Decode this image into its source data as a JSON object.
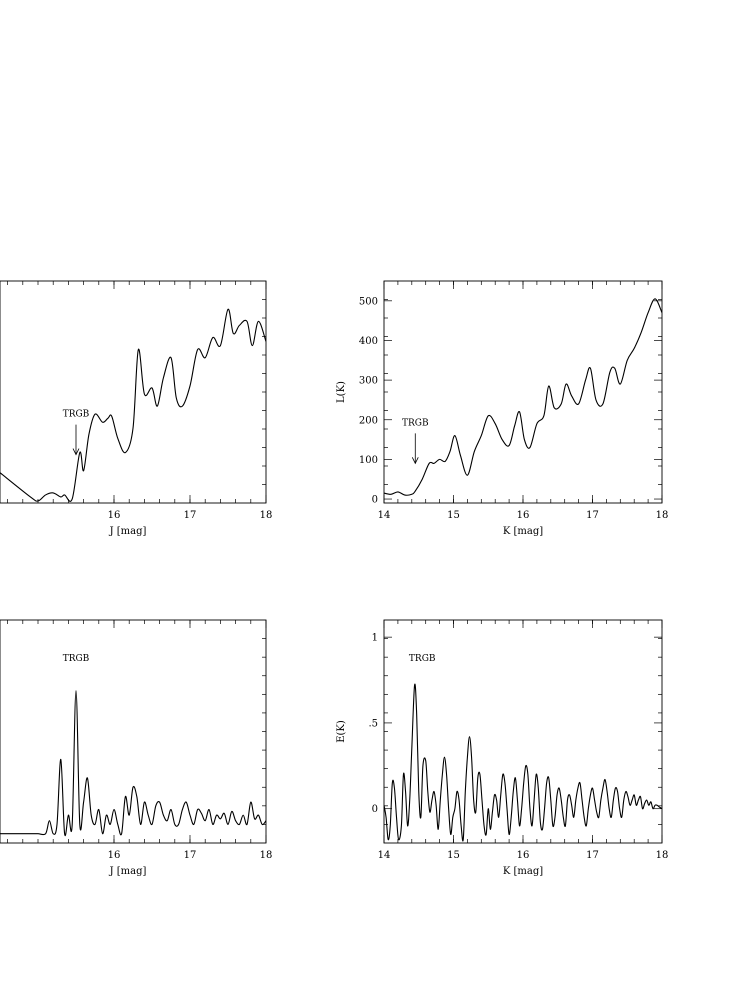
{
  "chart_data": [
    {
      "id": "top-left",
      "type": "line",
      "xlabel": "J [mag]",
      "ylabel": "",
      "xlim": [
        14.5,
        18
      ],
      "ylim": [
        0,
        550
      ],
      "x_ticks": [
        16,
        17,
        18
      ],
      "y_ticks": [],
      "annotation": {
        "text": "TRGB",
        "x": 15.5,
        "arrow": true
      },
      "series": [
        {
          "x": [
            14.5,
            14.9,
            15.0,
            15.1,
            15.2,
            15.3,
            15.35,
            15.45,
            15.55,
            15.6,
            15.67,
            15.75,
            15.85,
            15.92,
            15.97,
            16.05,
            16.15,
            16.25,
            16.32,
            16.4,
            16.5,
            16.57,
            16.65,
            16.75,
            16.82,
            16.9,
            17.0,
            17.1,
            17.2,
            17.3,
            17.4,
            17.5,
            17.57,
            17.65,
            17.75,
            17.82,
            17.9,
            18.0
          ],
          "y": [
            75,
            15,
            5,
            20,
            25,
            15,
            20,
            10,
            125,
            80,
            170,
            220,
            200,
            210,
            215,
            160,
            125,
            185,
            380,
            270,
            285,
            240,
            310,
            360,
            260,
            240,
            290,
            380,
            360,
            410,
            390,
            480,
            420,
            440,
            450,
            390,
            450,
            400
          ]
        }
      ]
    },
    {
      "id": "top-right",
      "type": "line",
      "xlabel": "K [mag]",
      "ylabel": "L(K)",
      "xlim": [
        14,
        18
      ],
      "ylim": [
        -10,
        550
      ],
      "x_ticks": [
        14,
        15,
        16,
        17,
        18
      ],
      "y_ticks": [
        0,
        100,
        200,
        300,
        400,
        500
      ],
      "annotation": {
        "text": "TRGB",
        "x": 14.45,
        "arrow": true
      },
      "series": [
        {
          "x": [
            14.0,
            14.1,
            14.2,
            14.3,
            14.4,
            14.45,
            14.55,
            14.65,
            14.72,
            14.8,
            14.88,
            14.95,
            15.02,
            15.1,
            15.2,
            15.3,
            15.4,
            15.5,
            15.6,
            15.7,
            15.8,
            15.88,
            15.95,
            16.02,
            16.1,
            16.2,
            16.3,
            16.37,
            16.45,
            16.55,
            16.62,
            16.7,
            16.8,
            16.9,
            16.97,
            17.05,
            17.15,
            17.25,
            17.32,
            17.4,
            17.5,
            17.6,
            17.7,
            17.8,
            17.9,
            18.0
          ],
          "y": [
            15,
            12,
            18,
            10,
            12,
            20,
            50,
            90,
            90,
            100,
            95,
            120,
            160,
            110,
            60,
            120,
            160,
            210,
            190,
            150,
            135,
            185,
            220,
            150,
            130,
            190,
            210,
            285,
            230,
            240,
            290,
            260,
            240,
            300,
            330,
            250,
            240,
            320,
            330,
            290,
            350,
            380,
            420,
            470,
            505,
            470
          ]
        }
      ]
    },
    {
      "id": "bottom-left",
      "type": "line",
      "xlabel": "J [mag]",
      "ylabel": "",
      "xlim": [
        14.5,
        18
      ],
      "ylim": [
        -0.1,
        1.1
      ],
      "x_ticks": [
        16,
        17,
        18
      ],
      "y_ticks": [],
      "annotation": {
        "text": "TRGB",
        "x": 15.5,
        "arrow": false
      },
      "series": [
        {
          "x": [
            14.5,
            14.9,
            15.0,
            15.1,
            15.15,
            15.2,
            15.25,
            15.3,
            15.35,
            15.4,
            15.45,
            15.5,
            15.55,
            15.6,
            15.65,
            15.7,
            15.75,
            15.8,
            15.85,
            15.9,
            15.95,
            16.0,
            16.05,
            16.1,
            16.15,
            16.2,
            16.25,
            16.3,
            16.35,
            16.4,
            16.45,
            16.5,
            16.55,
            16.6,
            16.65,
            16.7,
            16.75,
            16.8,
            16.85,
            16.9,
            16.95,
            17.0,
            17.05,
            17.1,
            17.15,
            17.2,
            17.25,
            17.3,
            17.35,
            17.4,
            17.45,
            17.5,
            17.55,
            17.6,
            17.65,
            17.7,
            17.75,
            17.8,
            17.85,
            17.9,
            17.95,
            18.0
          ],
          "y": [
            -0.05,
            -0.05,
            -0.05,
            -0.05,
            0.02,
            -0.05,
            0.0,
            0.35,
            -0.05,
            0.05,
            0.0,
            0.72,
            0.0,
            0.12,
            0.25,
            0.05,
            0.0,
            0.08,
            -0.05,
            0.05,
            0.0,
            0.08,
            0.0,
            -0.05,
            0.15,
            0.05,
            0.2,
            0.15,
            0.0,
            0.12,
            0.05,
            0.0,
            0.1,
            0.12,
            0.05,
            0.02,
            0.08,
            0.0,
            0.0,
            0.08,
            0.12,
            0.05,
            0.0,
            0.08,
            0.06,
            0.02,
            0.08,
            0.0,
            0.05,
            0.03,
            0.06,
            0.0,
            0.07,
            0.02,
            0.0,
            0.05,
            0.0,
            0.12,
            0.03,
            0.05,
            0.0,
            0.02
          ]
        }
      ]
    },
    {
      "id": "bottom-right",
      "type": "line",
      "xlabel": "K [mag]",
      "ylabel": "E(K)",
      "xlim": [
        14,
        18
      ],
      "ylim": [
        -0.2,
        1.1
      ],
      "x_ticks": [
        14,
        15,
        16,
        17,
        18
      ],
      "y_ticks": [
        0,
        0.5,
        1
      ],
      "y_tick_labels": [
        "0",
        ".5",
        "1"
      ],
      "annotation": {
        "text": "TRGB",
        "x": 14.55,
        "arrow": false
      },
      "series": [
        {
          "x": [
            14.0,
            14.03,
            14.06,
            14.09,
            14.12,
            14.15,
            14.18,
            14.21,
            14.25,
            14.28,
            14.31,
            14.34,
            14.37,
            14.4,
            14.44,
            14.47,
            14.5,
            14.53,
            14.56,
            14.6,
            14.63,
            14.66,
            14.69,
            14.72,
            14.75,
            14.78,
            14.81,
            14.84,
            14.87,
            14.9,
            14.93,
            14.96,
            14.99,
            15.02,
            15.05,
            15.08,
            15.11,
            15.14,
            15.17,
            15.2,
            15.23,
            15.26,
            15.29,
            15.32,
            15.35,
            15.38,
            15.41,
            15.44,
            15.47,
            15.5,
            15.53,
            15.56,
            15.59,
            15.62,
            15.65,
            15.68,
            15.71,
            15.74,
            15.77,
            15.8,
            15.83,
            15.86,
            15.89,
            15.92,
            15.95,
            15.98,
            16.01,
            16.04,
            16.07,
            16.1,
            16.13,
            16.16,
            16.19,
            16.22,
            16.25,
            16.28,
            16.31,
            16.34,
            16.37,
            16.4,
            16.43,
            16.46,
            16.49,
            16.52,
            16.55,
            16.58,
            16.61,
            16.64,
            16.67,
            16.7,
            16.73,
            16.76,
            16.79,
            16.82,
            16.85,
            16.88,
            16.91,
            16.94,
            16.97,
            17.0,
            17.03,
            17.06,
            17.09,
            17.12,
            17.15,
            17.18,
            17.21,
            17.24,
            17.27,
            17.3,
            17.33,
            17.36,
            17.39,
            17.42,
            17.45,
            17.48,
            17.51,
            17.54,
            17.57,
            17.6,
            17.63,
            17.66,
            17.69,
            17.72,
            17.75,
            17.78,
            17.81,
            17.84,
            17.87,
            17.9,
            17.93,
            17.96,
            18.0
          ],
          "y": [
            0.02,
            -0.05,
            -0.18,
            -0.1,
            0.15,
            0.12,
            -0.05,
            -0.18,
            -0.1,
            0.2,
            0.1,
            -0.1,
            0.05,
            0.35,
            0.72,
            0.55,
            0.1,
            -0.05,
            0.25,
            0.28,
            0.1,
            -0.02,
            0.05,
            0.1,
            0.02,
            -0.12,
            0.05,
            0.2,
            0.3,
            0.2,
            0.0,
            -0.15,
            -0.05,
            0.0,
            0.1,
            0.05,
            -0.1,
            -0.18,
            0.1,
            0.3,
            0.42,
            0.3,
            0.05,
            -0.02,
            0.18,
            0.2,
            0.05,
            -0.1,
            -0.15,
            0.0,
            -0.12,
            -0.02,
            0.08,
            0.05,
            -0.05,
            0.08,
            0.2,
            0.15,
            0.0,
            -0.15,
            -0.05,
            0.1,
            0.18,
            0.05,
            -0.1,
            0.0,
            0.15,
            0.25,
            0.2,
            0.0,
            -0.1,
            0.05,
            0.2,
            0.12,
            -0.08,
            -0.12,
            0.0,
            0.15,
            0.18,
            0.05,
            -0.1,
            -0.05,
            0.08,
            0.12,
            0.05,
            -0.05,
            -0.1,
            0.05,
            0.08,
            0.02,
            -0.05,
            0.05,
            0.12,
            0.15,
            0.05,
            -0.05,
            -0.1,
            0.0,
            0.08,
            0.12,
            0.05,
            -0.02,
            -0.05,
            0.05,
            0.12,
            0.17,
            0.1,
            0.0,
            -0.05,
            0.05,
            0.12,
            0.1,
            0.0,
            -0.05,
            0.05,
            0.1,
            0.07,
            0.02,
            0.05,
            0.08,
            0.02,
            0.05,
            0.07,
            0.0,
            0.03,
            0.05,
            0.02,
            0.04,
            0.0,
            0.02,
            0.02,
            0.01,
            0.0
          ]
        }
      ]
    }
  ]
}
